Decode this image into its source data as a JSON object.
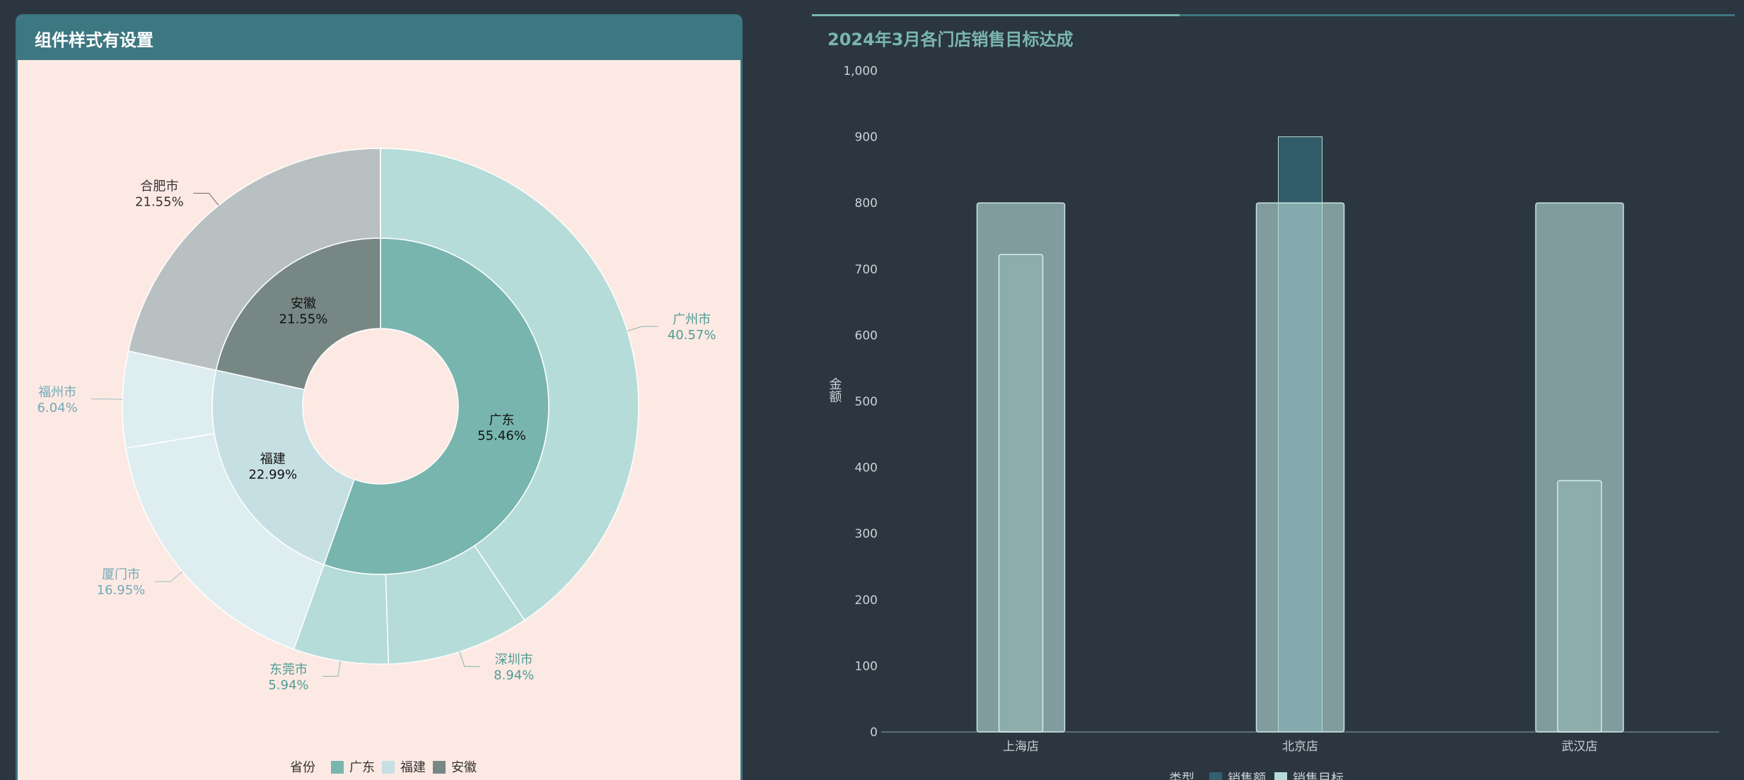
{
  "left": {
    "title": "组件样式有设置"
  },
  "right": {
    "title": "2024年3月各门店销售目标达成"
  },
  "colors": {
    "page_bg": "#2b3640",
    "left_bg": "#fde9e3",
    "header_bg": "#3d7782",
    "guangdong_inner": "#78b5af",
    "guangdong_outer": "#b5dcd8",
    "fujian_inner": "#c6dfe3",
    "fujian_outer": "#deedf0",
    "anhui_inner": "#778784",
    "anhui_outer": "#b9c0c2",
    "bar_sales": "#345f6d",
    "bar_target": "#b5dcd8"
  },
  "chart_data": [
    {
      "type": "pie",
      "variant": "nested-donut",
      "legend": {
        "title": "省份",
        "items": [
          "广东",
          "福建",
          "安徽"
        ],
        "position": "bottom-center"
      },
      "inner": [
        {
          "name": "广东",
          "percent": 55.46,
          "label": "55.46%"
        },
        {
          "name": "福建",
          "percent": 22.99,
          "label": "22.99%"
        },
        {
          "name": "安徽",
          "percent": 21.55,
          "label": "21.55%"
        }
      ],
      "outer": [
        {
          "name": "广州市",
          "parent": "广东",
          "percent": 40.57,
          "label": "40.57%"
        },
        {
          "name": "深圳市",
          "parent": "广东",
          "percent": 8.94,
          "label": "8.94%"
        },
        {
          "name": "东莞市",
          "parent": "广东",
          "percent": 5.94,
          "label": "5.94%"
        },
        {
          "name": "厦门市",
          "parent": "福建",
          "percent": 16.95,
          "label": "16.95%"
        },
        {
          "name": "福州市",
          "parent": "福建",
          "percent": 6.04,
          "label": "6.04%"
        },
        {
          "name": "合肥市",
          "parent": "安徽",
          "percent": 21.55,
          "label": "21.55%"
        }
      ]
    },
    {
      "type": "bar",
      "categories": [
        "上海店",
        "北京店",
        "武汉店"
      ],
      "series": [
        {
          "name": "销售额",
          "values": [
            722,
            900,
            380
          ]
        },
        {
          "name": "销售目标",
          "values": [
            800,
            800,
            800
          ]
        }
      ],
      "ylabel": "金额",
      "ylim": [
        0,
        1000
      ],
      "yticks": [
        0,
        100,
        200,
        300,
        400,
        500,
        600,
        700,
        800,
        900,
        1000
      ],
      "ytick_labels": [
        "0",
        "100",
        "200",
        "300",
        "400",
        "500",
        "600",
        "700",
        "800",
        "900",
        "1,000"
      ],
      "legend": {
        "title": "类型",
        "position": "bottom-center"
      },
      "grid": false
    }
  ]
}
